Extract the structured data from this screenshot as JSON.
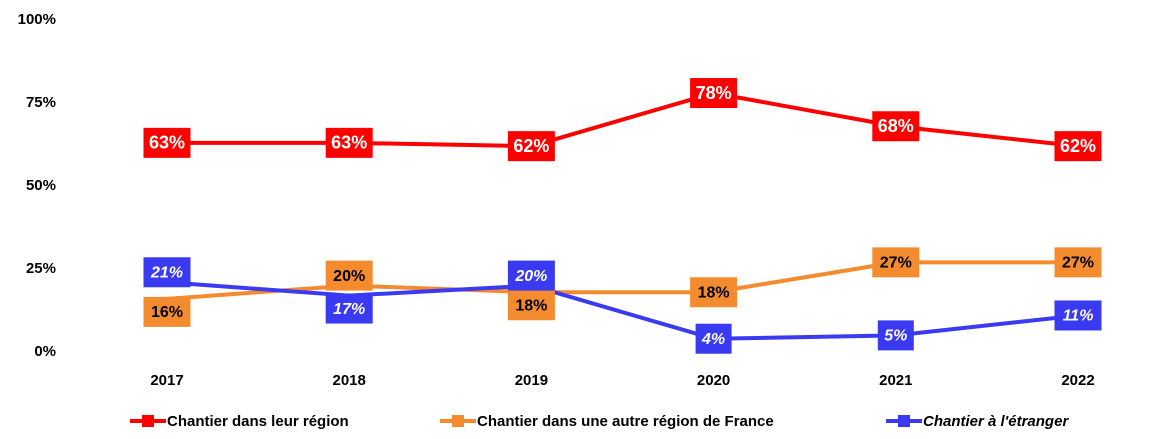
{
  "chart_data": {
    "type": "line",
    "categories": [
      "2017",
      "2018",
      "2019",
      "2020",
      "2021",
      "2022"
    ],
    "series": [
      {
        "name": "Chantier dans leur région",
        "color": "#ff0000",
        "values": [
          63,
          63,
          62,
          78,
          68,
          62
        ],
        "value_labels": [
          "63%",
          "63%",
          "62%",
          "78%",
          "68%",
          "62%"
        ]
      },
      {
        "name": "Chantier dans une autre région de France",
        "color": "#f58b2f",
        "values": [
          16,
          20,
          18,
          18,
          27,
          27
        ],
        "value_labels": [
          "16%",
          "20%",
          "18%",
          "18%",
          "27%",
          "27%"
        ]
      },
      {
        "name": "Chantier à l'étranger",
        "color": "#3a3af2",
        "values": [
          21,
          17,
          20,
          4,
          5,
          11
        ],
        "value_labels": [
          "21%",
          "17%",
          "20%",
          "4%",
          "5%",
          "11%"
        ]
      }
    ],
    "ylim": [
      0,
      100
    ],
    "yticks": [
      {
        "value": 0,
        "label": "0%"
      },
      {
        "value": 25,
        "label": "25%"
      },
      {
        "value": 50,
        "label": "50%"
      },
      {
        "value": 75,
        "label": "75%"
      },
      {
        "value": 100,
        "label": "100%"
      }
    ],
    "grid": false,
    "legend": "bottom"
  }
}
